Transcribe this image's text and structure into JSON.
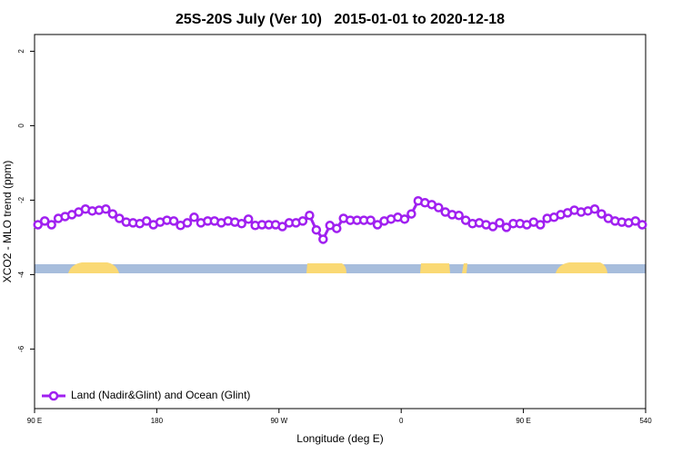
{
  "chart_data": {
    "type": "line",
    "title": "25S-20S July (Ver 10)   2015-01-01 to 2020-12-18",
    "x_label": "Longitude (deg E)",
    "y_label": "XCO2 - MLO trend (ppm)",
    "xlim": [
      90,
      540
    ],
    "ylim": [
      -7.6,
      2.45
    ],
    "xticks": [
      {
        "value": 90,
        "label": "90 E"
      },
      180,
      {
        "value": 270,
        "label": "90 W"
      },
      {
        "value": 360,
        "label": "0"
      },
      {
        "value": 450,
        "label": "90 E"
      },
      540
    ],
    "yticks": [
      -6,
      -4,
      -2,
      0,
      2
    ],
    "legend": "bottomleft",
    "x": [
      92.5,
      97.5,
      102.5,
      107.5,
      112.5,
      117.5,
      122.5,
      127.5,
      132.5,
      137.5,
      142.5,
      147.5,
      152.5,
      157.5,
      162.5,
      167.5,
      172.5,
      177.5,
      182.5,
      187.5,
      192.5,
      197.5,
      202.5,
      207.5,
      212.5,
      217.5,
      222.5,
      227.5,
      232.5,
      237.5,
      242.5,
      247.5,
      252.5,
      257.5,
      262.5,
      267.5,
      272.5,
      277.5,
      282.5,
      287.5,
      292.5,
      297.5,
      302.5,
      307.5,
      312.5,
      317.5,
      322.5,
      327.5,
      332.5,
      337.5,
      342.5,
      347.5,
      352.5,
      357.5,
      362.5,
      367.5,
      372.5,
      377.5,
      382.5,
      387.5,
      392.5,
      397.5,
      402.5,
      407.5,
      412.5,
      417.5,
      422.5,
      427.5,
      432.5,
      437.5,
      442.5,
      447.5,
      452.5,
      457.5,
      462.5,
      467.5,
      472.5,
      477.5,
      482.5,
      487.5,
      492.5,
      497.5,
      502.5,
      507.5,
      512.5,
      517.5,
      522.5,
      527.5,
      532.5,
      537.5
    ],
    "series": [
      {
        "name": "Land (Nadir&Glint) and Ocean (Glint)",
        "color": "#a020f0",
        "values": [
          -2.66,
          -2.56,
          -2.66,
          -2.49,
          -2.44,
          -2.39,
          -2.32,
          -2.24,
          -2.29,
          -2.27,
          -2.24,
          -2.37,
          -2.49,
          -2.59,
          -2.61,
          -2.63,
          -2.56,
          -2.66,
          -2.59,
          -2.54,
          -2.56,
          -2.68,
          -2.61,
          -2.46,
          -2.61,
          -2.56,
          -2.56,
          -2.61,
          -2.56,
          -2.59,
          -2.63,
          -2.51,
          -2.68,
          -2.66,
          -2.66,
          -2.66,
          -2.71,
          -2.61,
          -2.61,
          -2.56,
          -2.41,
          -2.8,
          -3.05,
          -2.68,
          -2.76,
          -2.49,
          -2.54,
          -2.54,
          -2.54,
          -2.54,
          -2.66,
          -2.56,
          -2.51,
          -2.46,
          -2.51,
          -2.37,
          -2.02,
          -2.07,
          -2.12,
          -2.2,
          -2.32,
          -2.39,
          -2.41,
          -2.54,
          -2.63,
          -2.61,
          -2.66,
          -2.71,
          -2.61,
          -2.73,
          -2.63,
          -2.63,
          -2.66,
          -2.59,
          -2.66,
          -2.49,
          -2.46,
          -2.39,
          -2.34,
          -2.27,
          -2.32,
          -2.29,
          -2.24,
          -2.37,
          -2.49,
          -2.56,
          -2.59,
          -2.61,
          -2.56,
          -2.66
        ]
      }
    ]
  }
}
